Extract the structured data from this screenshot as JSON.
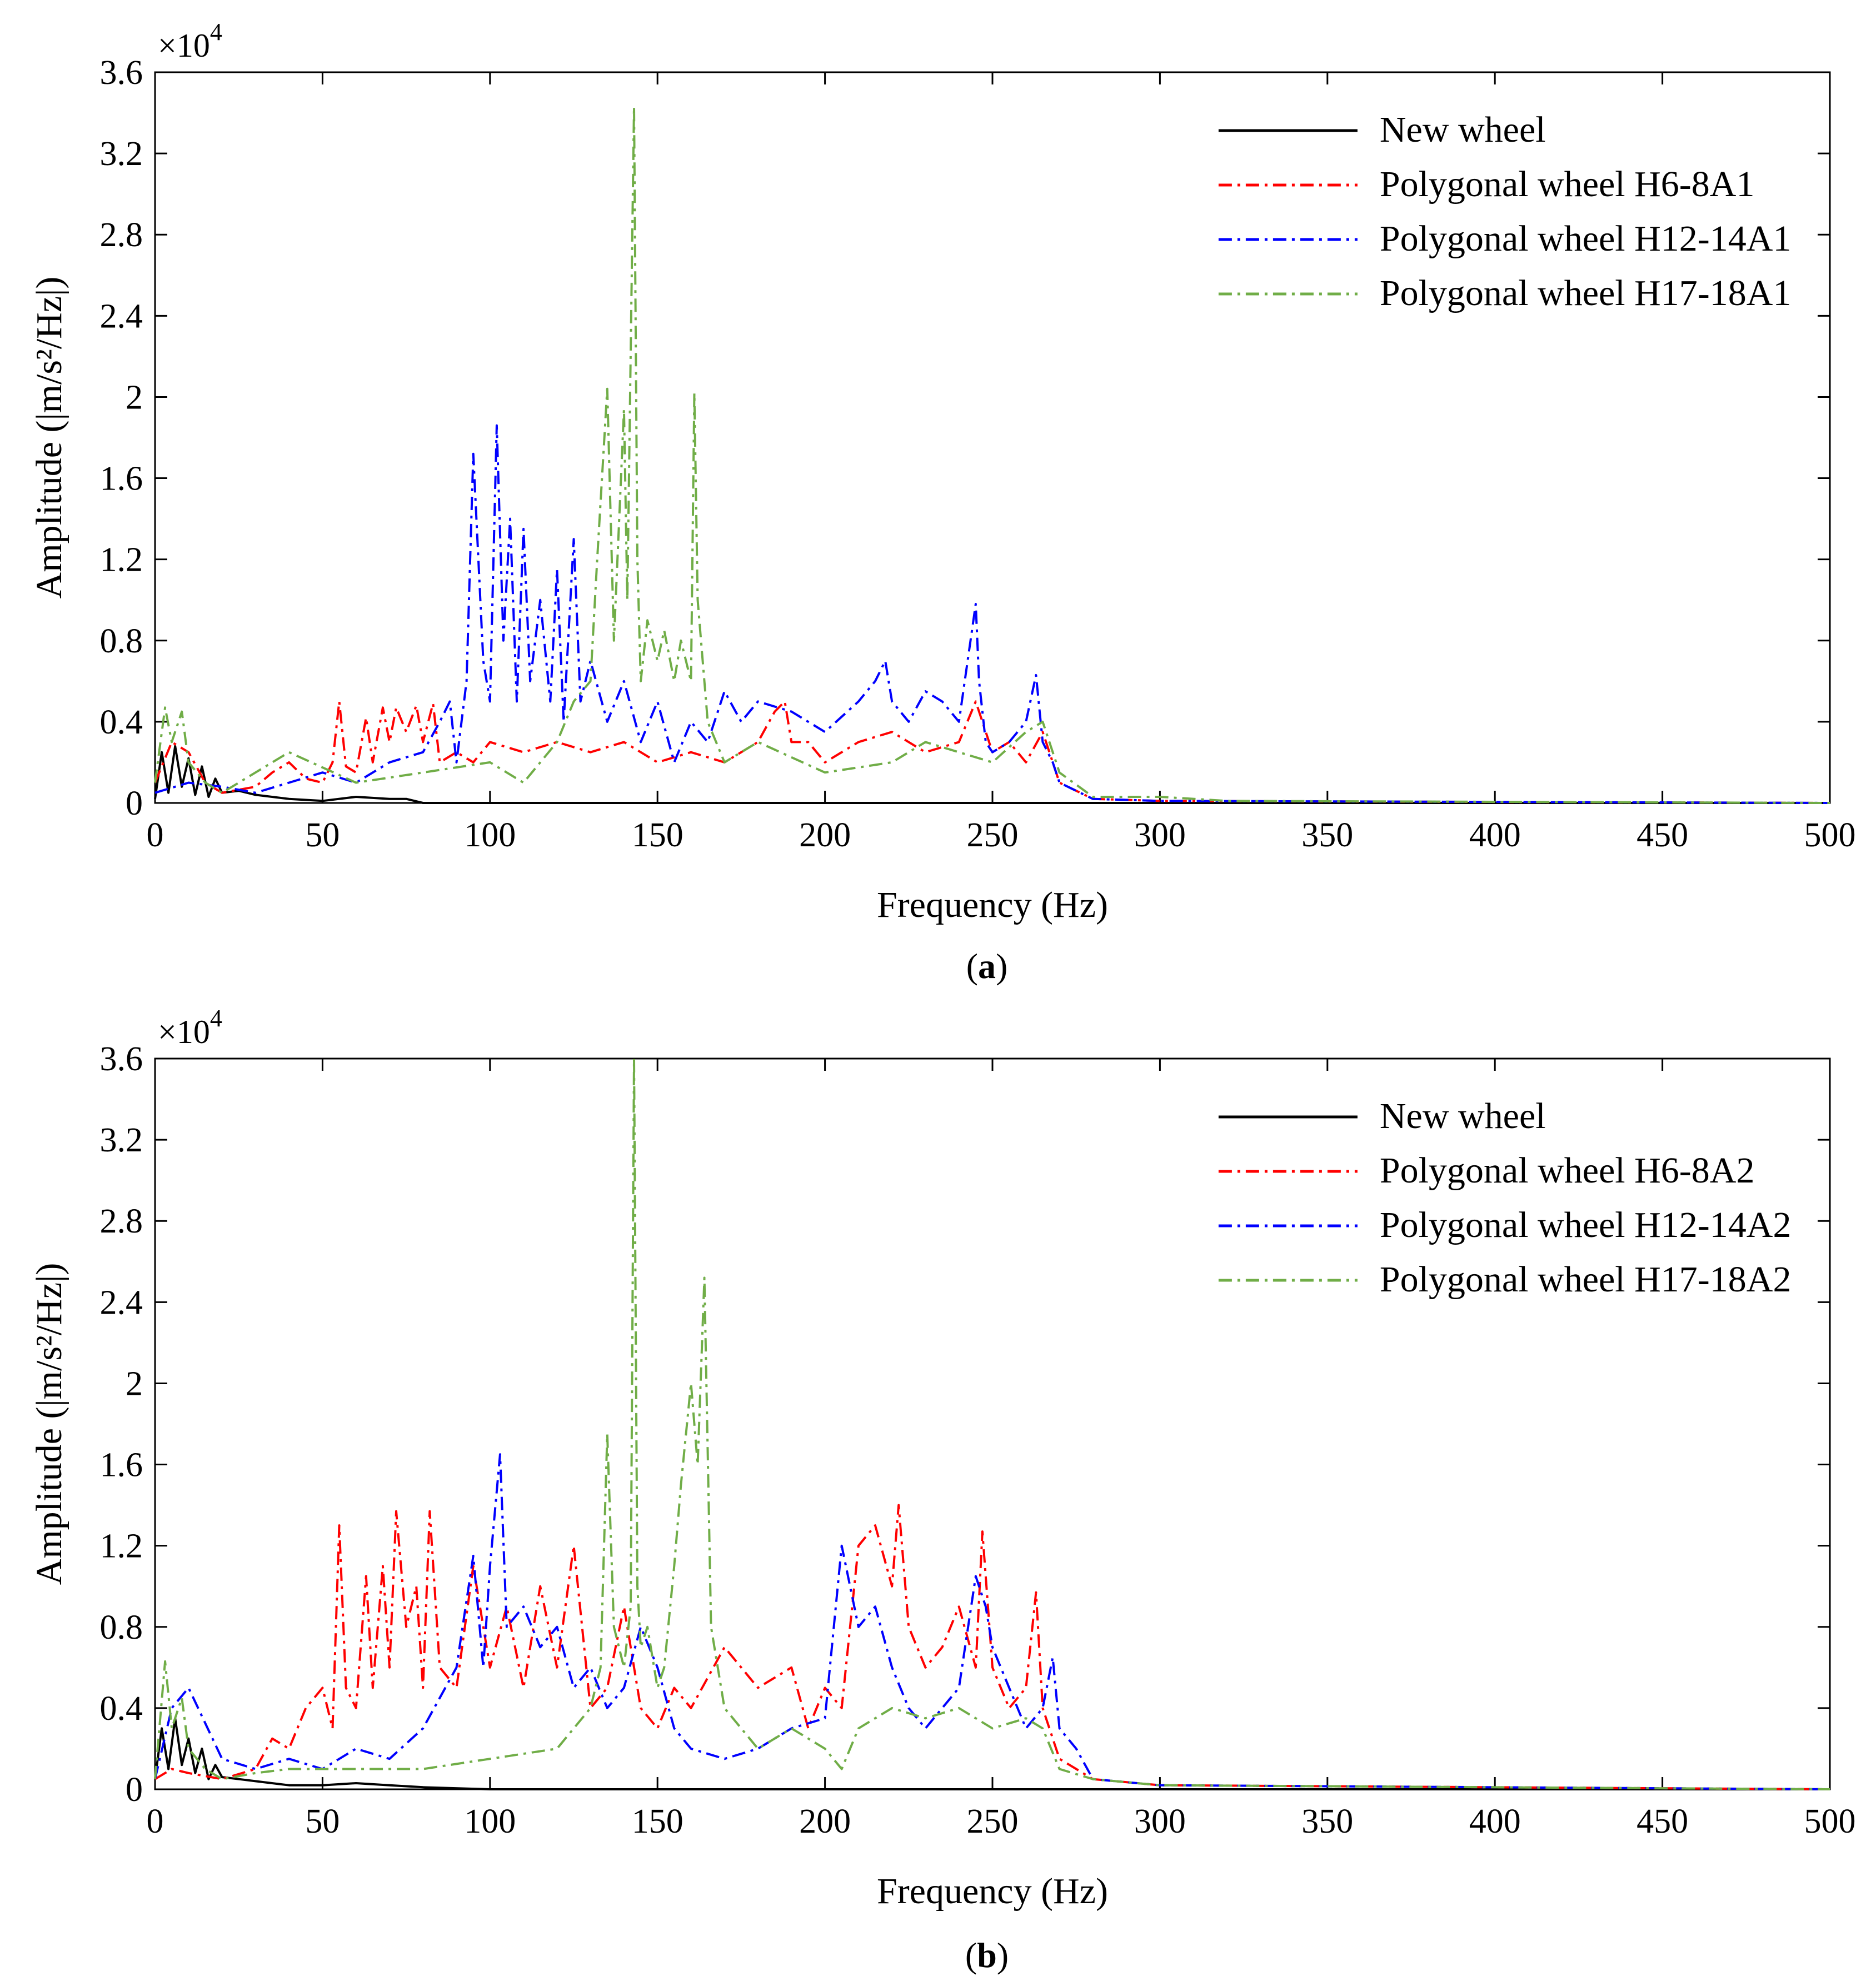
{
  "chart_data": [
    {
      "type": "line",
      "panel_label": "a",
      "xlabel": "Frequency (Hz)",
      "ylabel": "Amplitude (|m/s²/Hz|)",
      "y_multiplier": "×10",
      "y_multiplier_exp": "4",
      "xlim": [
        0,
        500
      ],
      "ylim": [
        0,
        3.6
      ],
      "xticks": [
        "0",
        "50",
        "100",
        "150",
        "200",
        "250",
        "300",
        "350",
        "400",
        "450",
        "500"
      ],
      "yticks": [
        "0",
        "0.4",
        "0.8",
        "1.2",
        "1.6",
        "2",
        "2.4",
        "2.8",
        "3.2",
        "3.6"
      ],
      "legend_position": "top-right",
      "series": [
        {
          "name": "New wheel",
          "color": "#000000",
          "style": "solid",
          "x": [
            0,
            2,
            4,
            6,
            8,
            10,
            12,
            14,
            16,
            18,
            20,
            25,
            30,
            40,
            50,
            60,
            70,
            75,
            80,
            100,
            200,
            300,
            500
          ],
          "y": [
            0.02,
            0.25,
            0.05,
            0.28,
            0.08,
            0.22,
            0.04,
            0.18,
            0.03,
            0.12,
            0.05,
            0.06,
            0.04,
            0.02,
            0.01,
            0.03,
            0.02,
            0.02,
            0.0,
            0.0,
            0.0,
            0.0,
            0.0
          ]
        },
        {
          "name": "Polygonal wheel H6-8A1",
          "color": "#ff0000",
          "style": "dash-dot",
          "x": [
            0,
            5,
            10,
            15,
            20,
            30,
            35,
            40,
            45,
            50,
            53,
            55,
            57,
            60,
            63,
            65,
            68,
            70,
            72,
            75,
            78,
            80,
            83,
            85,
            90,
            95,
            100,
            110,
            120,
            130,
            140,
            150,
            160,
            170,
            180,
            185,
            188,
            190,
            195,
            200,
            210,
            220,
            230,
            240,
            245,
            250,
            255,
            260,
            265,
            268,
            270,
            280,
            300,
            500
          ],
          "y": [
            0.1,
            0.3,
            0.25,
            0.1,
            0.05,
            0.08,
            0.15,
            0.2,
            0.12,
            0.1,
            0.2,
            0.5,
            0.18,
            0.15,
            0.42,
            0.2,
            0.47,
            0.3,
            0.47,
            0.35,
            0.48,
            0.3,
            0.49,
            0.2,
            0.25,
            0.2,
            0.3,
            0.25,
            0.3,
            0.25,
            0.3,
            0.2,
            0.25,
            0.2,
            0.3,
            0.45,
            0.5,
            0.3,
            0.3,
            0.2,
            0.3,
            0.35,
            0.25,
            0.3,
            0.5,
            0.25,
            0.3,
            0.2,
            0.35,
            0.2,
            0.1,
            0.02,
            0.01,
            0.0
          ]
        },
        {
          "name": "Polygonal wheel H12-14A1",
          "color": "#0000ff",
          "style": "dash-dot",
          "x": [
            0,
            10,
            20,
            30,
            40,
            50,
            60,
            70,
            80,
            85,
            88,
            90,
            93,
            95,
            98,
            100,
            102,
            104,
            106,
            108,
            110,
            112,
            115,
            118,
            120,
            122,
            125,
            127,
            130,
            135,
            140,
            145,
            150,
            155,
            160,
            165,
            170,
            175,
            180,
            190,
            200,
            210,
            215,
            218,
            220,
            225,
            230,
            235,
            240,
            245,
            246,
            248,
            250,
            255,
            260,
            263,
            265,
            268,
            270,
            280,
            300,
            500
          ],
          "y": [
            0.05,
            0.1,
            0.08,
            0.05,
            0.1,
            0.15,
            0.1,
            0.2,
            0.25,
            0.4,
            0.5,
            0.2,
            0.6,
            1.72,
            0.7,
            0.5,
            1.86,
            0.8,
            1.4,
            0.5,
            1.35,
            0.6,
            1.0,
            0.5,
            1.15,
            0.4,
            1.3,
            0.5,
            0.7,
            0.4,
            0.6,
            0.3,
            0.5,
            0.2,
            0.4,
            0.3,
            0.55,
            0.4,
            0.5,
            0.45,
            0.35,
            0.5,
            0.6,
            0.7,
            0.5,
            0.4,
            0.55,
            0.5,
            0.4,
            0.98,
            0.6,
            0.3,
            0.25,
            0.3,
            0.4,
            0.63,
            0.3,
            0.2,
            0.1,
            0.02,
            0.01,
            0.0
          ]
        },
        {
          "name": "Polygonal wheel H17-18A1",
          "color": "#70ad47",
          "style": "dash-dot",
          "x": [
            0,
            3,
            5,
            8,
            10,
            15,
            20,
            30,
            40,
            60,
            80,
            100,
            110,
            120,
            125,
            130,
            132,
            135,
            137,
            140,
            141,
            143,
            144,
            145,
            147,
            150,
            152,
            155,
            157,
            160,
            161,
            162,
            165,
            170,
            180,
            200,
            220,
            230,
            240,
            250,
            260,
            265,
            270,
            280,
            300,
            320,
            500
          ],
          "y": [
            0.1,
            0.47,
            0.3,
            0.45,
            0.2,
            0.1,
            0.05,
            0.15,
            0.25,
            0.1,
            0.15,
            0.2,
            0.1,
            0.3,
            0.5,
            0.6,
            1.2,
            2.04,
            0.8,
            1.94,
            1.0,
            3.43,
            1.2,
            0.6,
            0.9,
            0.7,
            0.85,
            0.6,
            0.8,
            0.6,
            2.02,
            1.0,
            0.4,
            0.2,
            0.3,
            0.15,
            0.2,
            0.3,
            0.25,
            0.2,
            0.35,
            0.4,
            0.15,
            0.03,
            0.03,
            0.01,
            0.0
          ]
        }
      ]
    },
    {
      "type": "line",
      "panel_label": "b",
      "xlabel": "Frequency (Hz)",
      "ylabel": "Amplitude (|m/s²/Hz|)",
      "y_multiplier": "×10",
      "y_multiplier_exp": "4",
      "xlim": [
        0,
        500
      ],
      "ylim": [
        0,
        3.6
      ],
      "xticks": [
        "0",
        "50",
        "100",
        "150",
        "200",
        "250",
        "300",
        "350",
        "400",
        "450",
        "500"
      ],
      "yticks": [
        "0",
        "0.4",
        "0.8",
        "1.2",
        "1.6",
        "2",
        "2.4",
        "2.8",
        "3.2",
        "3.6"
      ],
      "legend_position": "top-right",
      "series": [
        {
          "name": "New wheel",
          "color": "#000000",
          "style": "solid",
          "x": [
            0,
            2,
            4,
            6,
            8,
            10,
            12,
            14,
            16,
            18,
            20,
            25,
            30,
            40,
            50,
            60,
            70,
            80,
            100,
            200,
            300,
            500
          ],
          "y": [
            0.05,
            0.3,
            0.1,
            0.35,
            0.12,
            0.25,
            0.08,
            0.2,
            0.05,
            0.12,
            0.06,
            0.05,
            0.04,
            0.02,
            0.02,
            0.03,
            0.02,
            0.01,
            0.0,
            0.0,
            0.0,
            0.0
          ]
        },
        {
          "name": "Polygonal wheel H6-8A2",
          "color": "#ff0000",
          "style": "dash-dot",
          "x": [
            0,
            5,
            10,
            20,
            30,
            35,
            40,
            45,
            50,
            53,
            55,
            57,
            60,
            63,
            65,
            68,
            70,
            72,
            75,
            78,
            80,
            82,
            85,
            90,
            95,
            100,
            105,
            110,
            115,
            120,
            125,
            130,
            135,
            140,
            145,
            150,
            155,
            160,
            170,
            180,
            190,
            195,
            200,
            205,
            210,
            215,
            220,
            222,
            225,
            230,
            235,
            240,
            245,
            247,
            250,
            255,
            260,
            263,
            265,
            270,
            280,
            300,
            500
          ],
          "y": [
            0.05,
            0.1,
            0.08,
            0.05,
            0.1,
            0.25,
            0.2,
            0.4,
            0.5,
            0.3,
            1.3,
            0.5,
            0.4,
            1.05,
            0.5,
            1.1,
            0.6,
            1.37,
            0.8,
            1.0,
            0.5,
            1.37,
            0.6,
            0.5,
            1.1,
            0.6,
            0.9,
            0.5,
            1.0,
            0.6,
            1.2,
            0.4,
            0.5,
            0.9,
            0.4,
            0.3,
            0.5,
            0.4,
            0.7,
            0.5,
            0.6,
            0.3,
            0.5,
            0.4,
            1.2,
            1.3,
            1.0,
            1.4,
            0.8,
            0.6,
            0.7,
            0.9,
            0.6,
            1.27,
            0.6,
            0.4,
            0.5,
            0.97,
            0.4,
            0.15,
            0.05,
            0.02,
            0.0
          ]
        },
        {
          "name": "Polygonal wheel H12-14A2",
          "color": "#0000ff",
          "style": "dash-dot",
          "x": [
            0,
            5,
            10,
            20,
            30,
            40,
            50,
            60,
            70,
            80,
            90,
            95,
            98,
            100,
            103,
            105,
            110,
            115,
            120,
            125,
            130,
            135,
            140,
            145,
            150,
            155,
            160,
            170,
            180,
            190,
            200,
            205,
            210,
            215,
            220,
            225,
            230,
            240,
            245,
            248,
            250,
            255,
            260,
            265,
            268,
            270,
            275,
            280,
            300,
            500
          ],
          "y": [
            0.05,
            0.4,
            0.5,
            0.15,
            0.1,
            0.15,
            0.1,
            0.2,
            0.15,
            0.3,
            0.6,
            1.15,
            0.6,
            1.1,
            1.65,
            0.8,
            0.9,
            0.7,
            0.8,
            0.5,
            0.6,
            0.4,
            0.5,
            0.8,
            0.6,
            0.3,
            0.2,
            0.15,
            0.2,
            0.3,
            0.35,
            1.2,
            0.8,
            0.9,
            0.6,
            0.4,
            0.3,
            0.5,
            1.05,
            0.9,
            0.7,
            0.5,
            0.3,
            0.4,
            0.65,
            0.3,
            0.2,
            0.05,
            0.02,
            0.0
          ]
        },
        {
          "name": "Polygonal wheel H17-18A2",
          "color": "#70ad47",
          "style": "dash-dot",
          "x": [
            0,
            3,
            5,
            8,
            10,
            15,
            20,
            30,
            40,
            60,
            80,
            100,
            120,
            130,
            133,
            135,
            137,
            140,
            142,
            143,
            144,
            145,
            147,
            150,
            152,
            155,
            157,
            160,
            162,
            164,
            166,
            170,
            180,
            190,
            200,
            205,
            210,
            220,
            230,
            240,
            250,
            260,
            265,
            270,
            280,
            300,
            500
          ],
          "y": [
            0.05,
            0.63,
            0.3,
            0.45,
            0.2,
            0.1,
            0.05,
            0.08,
            0.1,
            0.1,
            0.1,
            0.15,
            0.2,
            0.4,
            0.6,
            1.75,
            0.8,
            0.6,
            0.9,
            3.6,
            1.0,
            0.7,
            0.8,
            0.5,
            0.6,
            1.1,
            1.5,
            2.0,
            1.6,
            2.52,
            0.8,
            0.4,
            0.2,
            0.3,
            0.2,
            0.1,
            0.3,
            0.4,
            0.35,
            0.4,
            0.3,
            0.35,
            0.3,
            0.1,
            0.05,
            0.02,
            0.0
          ]
        }
      ]
    }
  ]
}
